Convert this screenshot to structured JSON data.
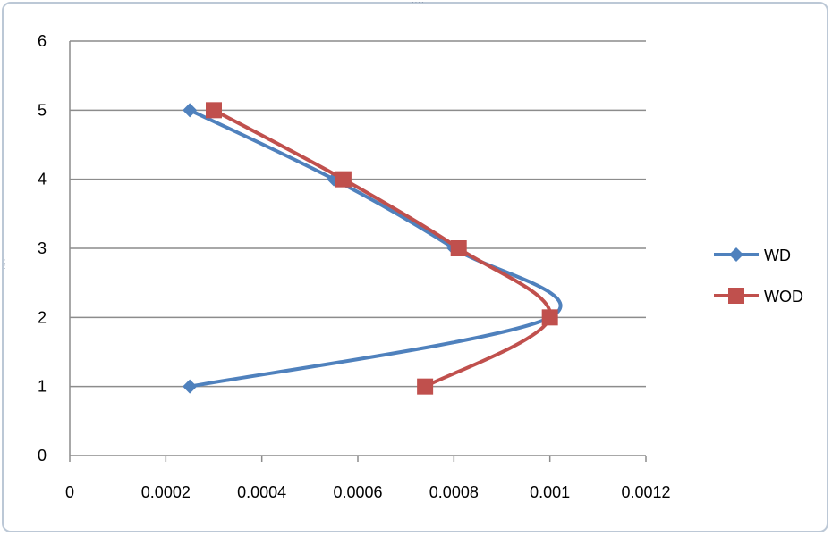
{
  "chart_data": {
    "type": "line",
    "smooth": true,
    "title": "",
    "xlabel": "",
    "ylabel": "",
    "xlim": [
      0,
      0.0012
    ],
    "ylim": [
      0,
      6
    ],
    "x_ticks": [
      "0",
      "0.0002",
      "0.0004",
      "0.0006",
      "0.0008",
      "0.001",
      "0.0012"
    ],
    "y_ticks": [
      "0",
      "1",
      "2",
      "3",
      "4",
      "5",
      "6"
    ],
    "grid": "horizontal",
    "legend_position": "right",
    "series": [
      {
        "name": "WD",
        "color": "#4f81bd",
        "marker": "diamond",
        "points": [
          {
            "x": 0.00025,
            "y": 1
          },
          {
            "x": 0.001,
            "y": 2
          },
          {
            "x": 0.0008,
            "y": 3
          },
          {
            "x": 0.00055,
            "y": 4
          },
          {
            "x": 0.00025,
            "y": 5
          }
        ]
      },
      {
        "name": "WOD",
        "color": "#c0504d",
        "marker": "square",
        "points": [
          {
            "x": 0.00074,
            "y": 1
          },
          {
            "x": 0.001,
            "y": 2
          },
          {
            "x": 0.00081,
            "y": 3
          },
          {
            "x": 0.00057,
            "y": 4
          },
          {
            "x": 0.0003,
            "y": 5
          }
        ]
      }
    ]
  }
}
